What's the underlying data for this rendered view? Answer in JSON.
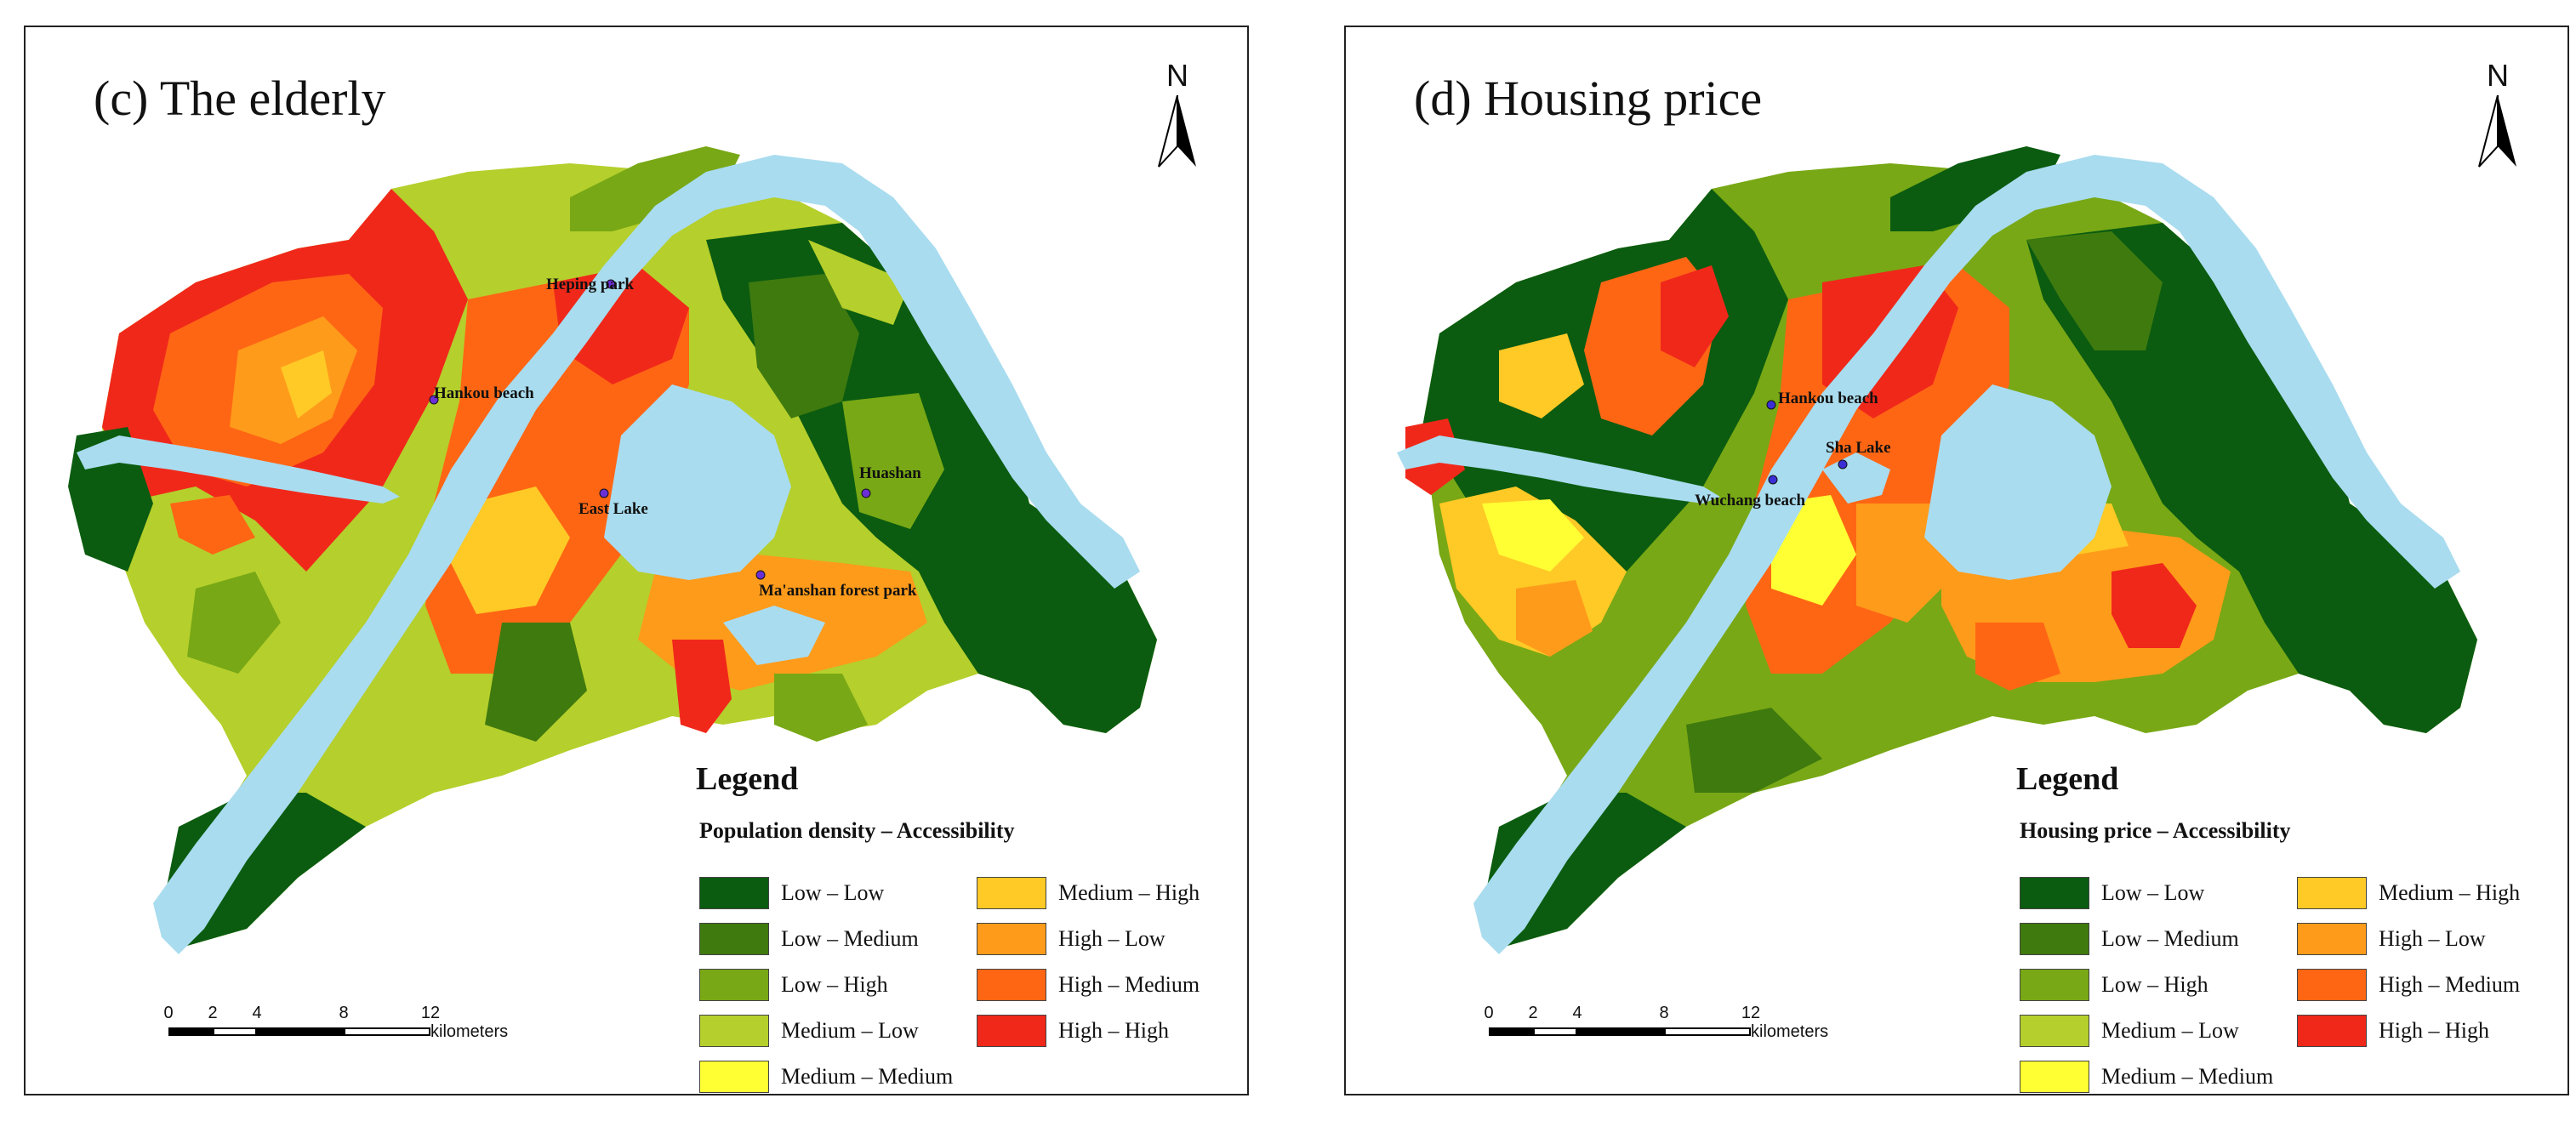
{
  "colors": {
    "water": "#a9dcef",
    "low_low": "#0b5c10",
    "low_medium": "#3f7a0f",
    "low_high": "#78a815",
    "medium_low": "#b5cf2c",
    "medium_medium": "#ffff33",
    "medium_high": "#ffc926",
    "high_low": "#ff9b1a",
    "high_medium": "#ff6614",
    "high_high": "#f0281a"
  },
  "panels": [
    {
      "title": "(c) The elderly",
      "north": "N",
      "places": [
        "Heping park",
        "Hankou beach",
        "Huashan",
        "East Lake",
        "Ma'anshan forest park"
      ],
      "legend": {
        "heading": "Legend",
        "subtitle": "Population density – Accessibility",
        "items": [
          "Low – Low",
          "Low – Medium",
          "Low – High",
          "Medium – Low",
          "Medium – Medium",
          "Medium – High",
          "High – Low",
          "High – Medium",
          "High – High"
        ]
      },
      "scale": {
        "ticks": [
          "0",
          "2",
          "4",
          "8",
          "12"
        ],
        "unit": "kilometers"
      }
    },
    {
      "title": "(d) Housing price",
      "north": "N",
      "places": [
        "Hankou beach",
        "Sha Lake",
        "Wuchang beach"
      ],
      "legend": {
        "heading": "Legend",
        "subtitle": "Housing price – Accessibility",
        "items": [
          "Low – Low",
          "Low – Medium",
          "Low – High",
          "Medium – Low",
          "Medium – Medium",
          "Medium – High",
          "High – Low",
          "High – Medium",
          "High – High"
        ]
      },
      "scale": {
        "ticks": [
          "0",
          "2",
          "4",
          "8",
          "12"
        ],
        "unit": "kilometers"
      }
    }
  ]
}
